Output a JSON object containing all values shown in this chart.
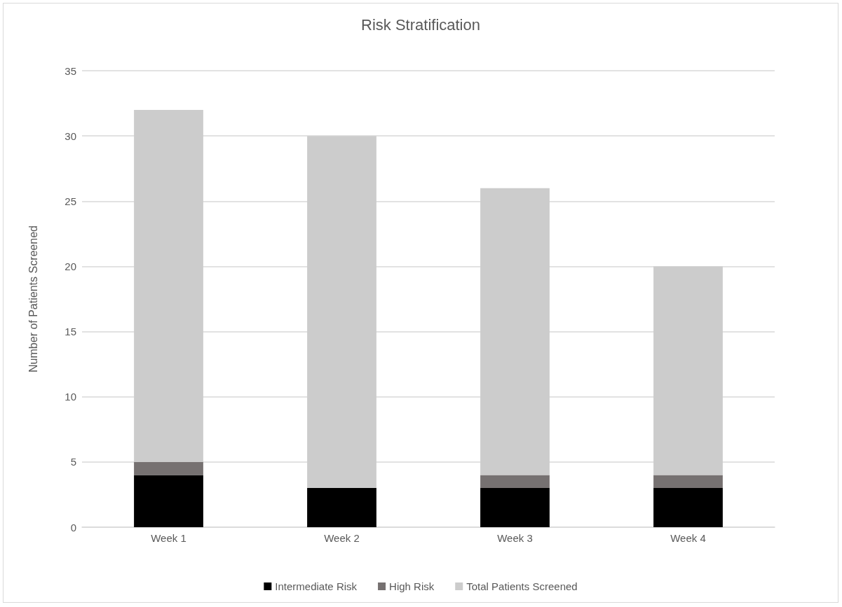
{
  "chart_data": {
    "type": "bar",
    "title": "Risk Stratification",
    "ylabel": "Number of Patients Screened",
    "categories": [
      "Week 1",
      "Week 2",
      "Week 3",
      "Week 4"
    ],
    "stacked": true,
    "series": [
      {
        "name": "Intermediate Risk",
        "color": "#000000",
        "values": [
          4,
          3,
          3,
          3
        ]
      },
      {
        "name": "High Risk",
        "color": "#767171",
        "values": [
          1,
          0,
          1,
          1
        ]
      },
      {
        "name": "Total Patients Screened",
        "color": "#cccccc",
        "values": [
          27,
          27,
          22,
          16
        ]
      }
    ],
    "ylim": [
      0,
      35
    ],
    "yticks": [
      0,
      5,
      10,
      15,
      20,
      25,
      30,
      35
    ],
    "grid": "y",
    "legend": "bottom"
  }
}
